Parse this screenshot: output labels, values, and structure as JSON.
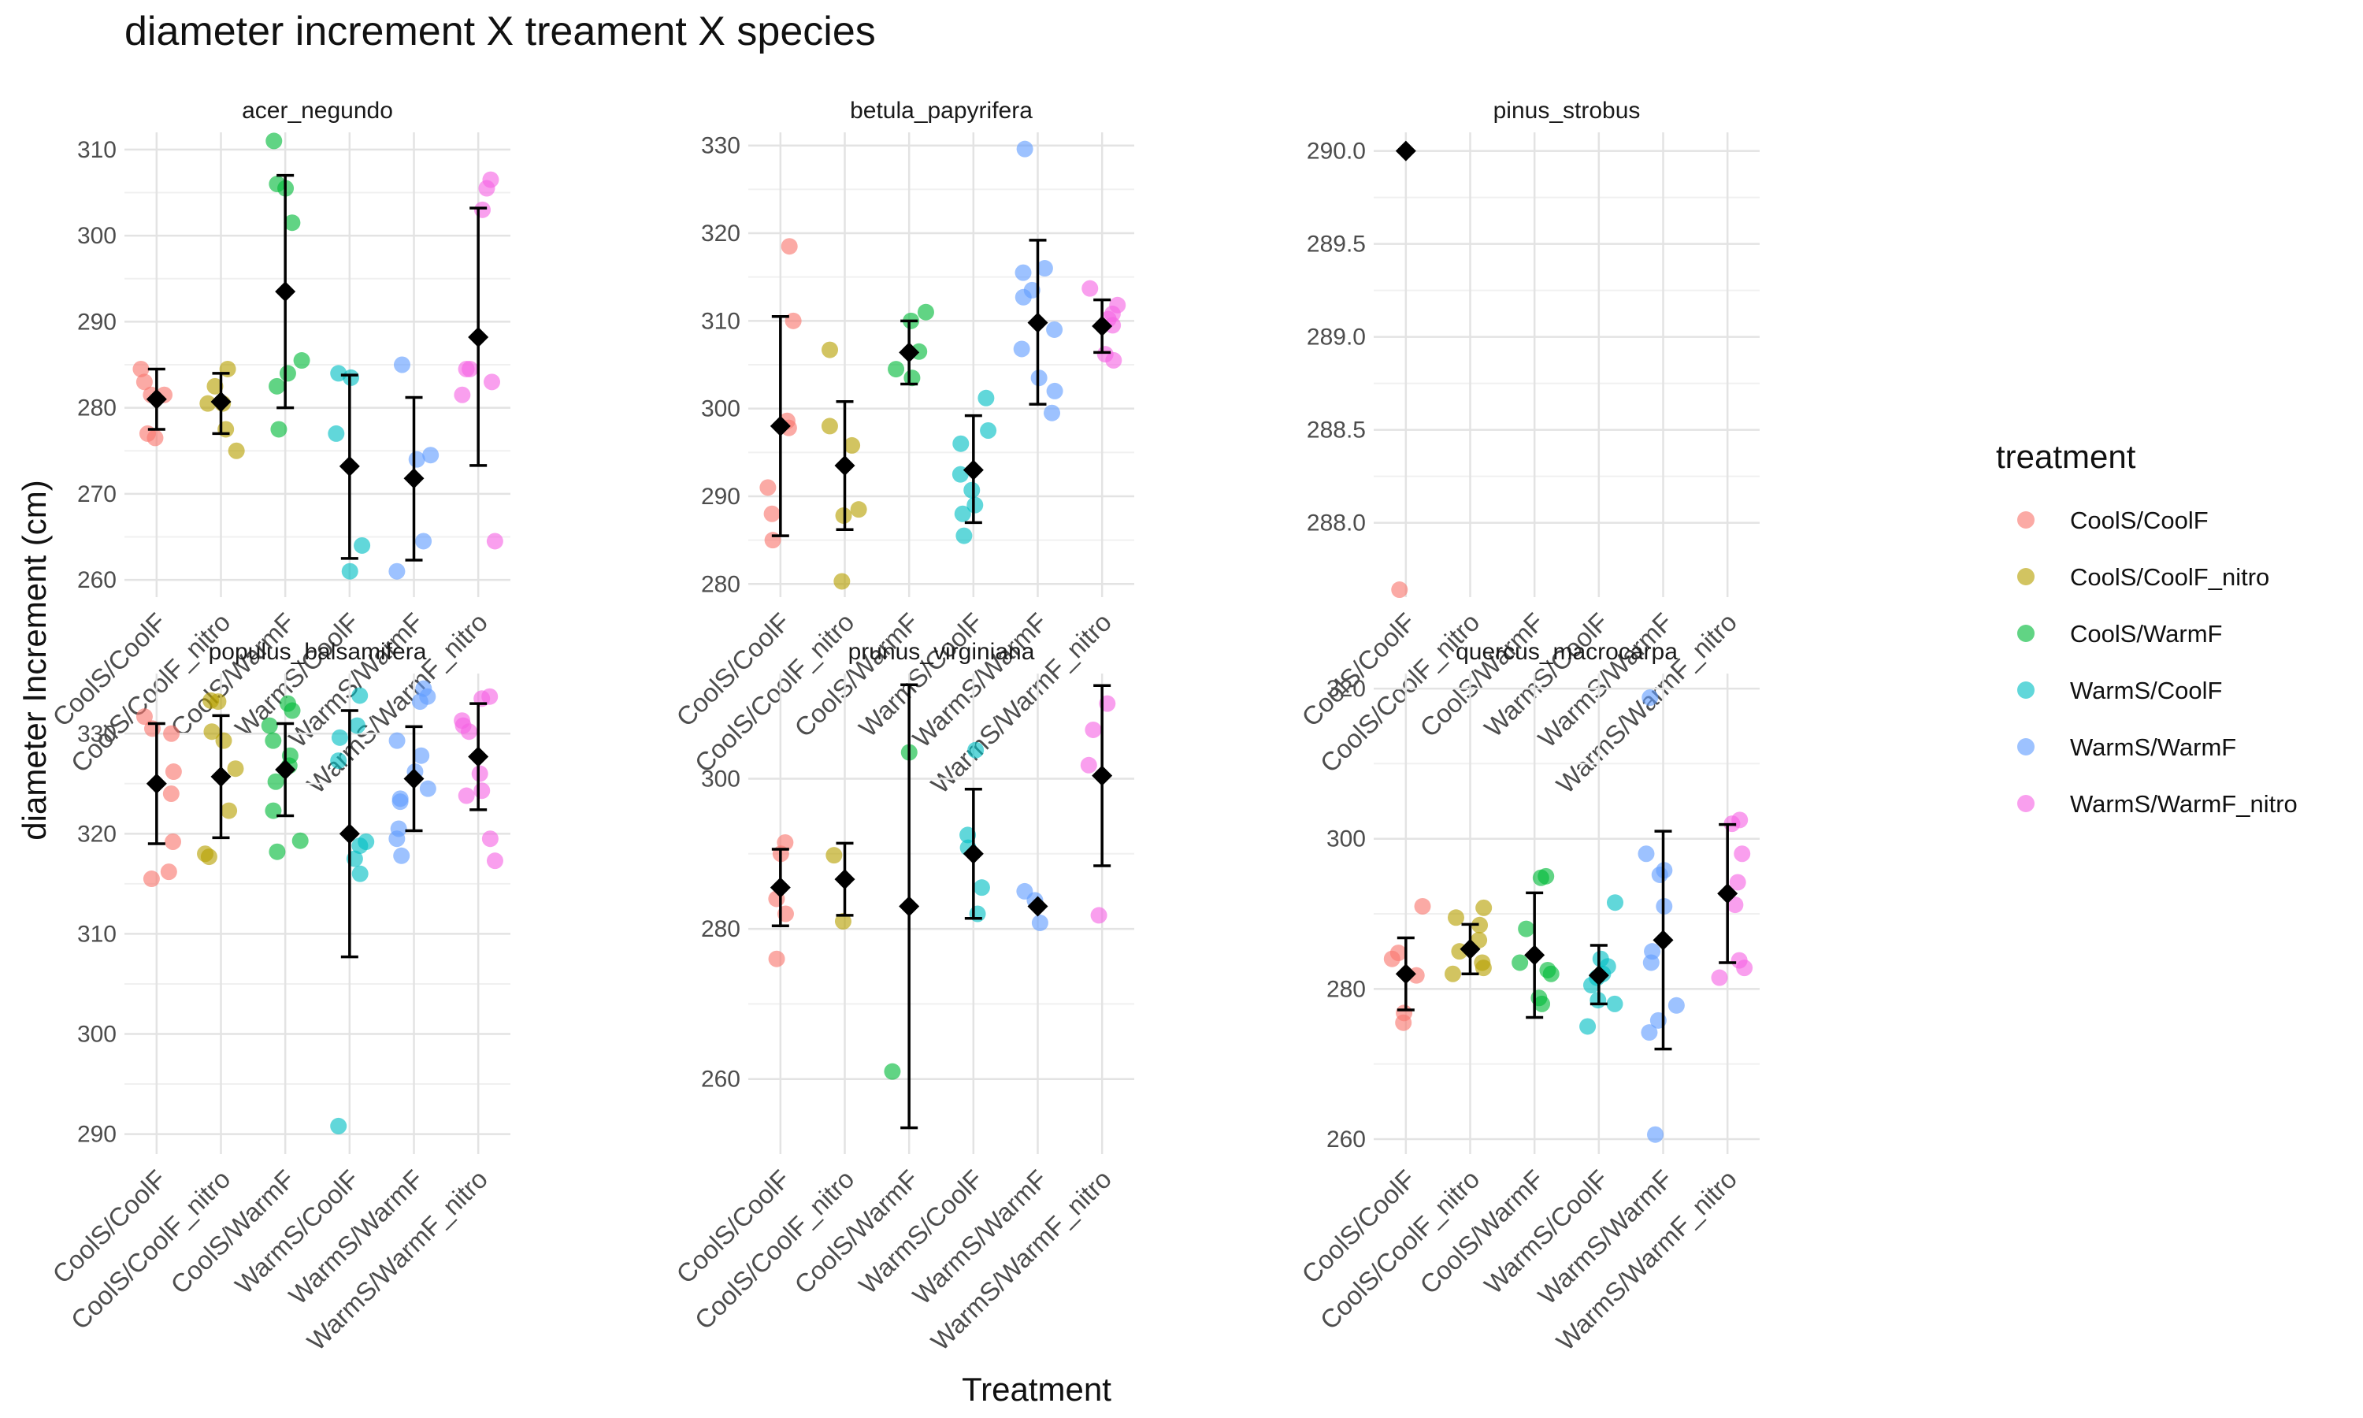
{
  "chart_data": {
    "type": "scatter",
    "title": "diameter increment X treament X species",
    "xlabel": "Treatment",
    "ylabel": "diameter Increment (cm)",
    "legend": {
      "title": "treatment",
      "placement": "right"
    },
    "grid": true,
    "categories": [
      "CoolS/CoolF",
      "CoolS/CoolF_nitro",
      "CoolS/WarmF",
      "WarmS/CoolF",
      "WarmS/WarmF",
      "WarmS/WarmF_nitro"
    ],
    "colors": {
      "CoolS/CoolF": "#F8766D",
      "CoolS/CoolF_nitro": "#B79F00",
      "CoolS/WarmF": "#00BA38",
      "WarmS/CoolF": "#00BFC4",
      "WarmS/WarmF": "#619CFF",
      "WarmS/WarmF_nitro": "#F564E3"
    },
    "panels": [
      {
        "name": "acer_negundo",
        "ylim": [
          258,
          312
        ],
        "yticks": [
          260,
          270,
          280,
          290,
          300,
          310
        ],
        "ytick_labels": [
          "260",
          "270",
          "280",
          "290",
          "300",
          "310"
        ],
        "points": [
          [
            277,
            276.5,
            281.5,
            283,
            284.5,
            281.5
          ],
          [
            275,
            280.5,
            280.5,
            282.5,
            284.5,
            277.5
          ],
          [
            277.5,
            282.5,
            285.5,
            284,
            301.5,
            305.5,
            306,
            311
          ],
          [
            261,
            264,
            277,
            284,
            283.5
          ],
          [
            261,
            264.5,
            274,
            274.5,
            285
          ],
          [
            264.5,
            281.5,
            283,
            284.5,
            284.5,
            303,
            305.5,
            306.5
          ]
        ],
        "summary": [
          {
            "mean": 281,
            "lower": 277.5,
            "upper": 284.5
          },
          {
            "mean": 280.7,
            "lower": 277,
            "upper": 284
          },
          {
            "mean": 293.5,
            "lower": 280,
            "upper": 307
          },
          {
            "mean": 273.2,
            "lower": 262.5,
            "upper": 283.8
          },
          {
            "mean": 271.8,
            "lower": 262.3,
            "upper": 281.2
          },
          {
            "mean": 288.2,
            "lower": 273.3,
            "upper": 303.2
          }
        ]
      },
      {
        "name": "betula_papyrifera",
        "ylim": [
          278.5,
          331.5
        ],
        "yticks": [
          280,
          290,
          300,
          310,
          320,
          330
        ],
        "ytick_labels": [
          "280",
          "290",
          "300",
          "310",
          "320",
          "330"
        ],
        "points": [
          [
            285,
            288,
            291,
            297.8,
            298.6,
            310,
            318.5
          ],
          [
            280.3,
            287.8,
            288.5,
            295.8,
            298,
            306.7
          ],
          [
            303.5,
            304.5,
            306.5,
            310,
            311
          ],
          [
            285.5,
            288,
            289,
            290.7,
            292.5,
            296,
            297.5,
            301.2
          ],
          [
            299.5,
            302,
            303.5,
            306.8,
            309,
            312.7,
            313.5,
            315.5,
            316,
            329.6
          ],
          [
            305.5,
            306.2,
            309.5,
            310.2,
            310.8,
            311.8,
            313.7
          ]
        ],
        "summary": [
          {
            "mean": 298,
            "lower": 285.5,
            "upper": 310.5
          },
          {
            "mean": 293.5,
            "lower": 286.2,
            "upper": 300.8
          },
          {
            "mean": 306.4,
            "lower": 302.8,
            "upper": 310
          },
          {
            "mean": 293,
            "lower": 287,
            "upper": 299.2
          },
          {
            "mean": 309.8,
            "lower": 300.5,
            "upper": 319.2
          },
          {
            "mean": 309.4,
            "lower": 306.4,
            "upper": 312.4
          }
        ]
      },
      {
        "name": "pinus_strobus",
        "ylim": [
          287.6,
          290.1
        ],
        "yticks": [
          288.0,
          288.5,
          289.0,
          289.5,
          290.0
        ],
        "ytick_labels": [
          "288.0",
          "288.5",
          "289.0",
          "289.5",
          "290.0"
        ],
        "points": [
          [
            287.64
          ],
          [],
          [],
          [],
          [],
          []
        ],
        "summary": [
          {
            "mean": 290.0,
            "lower": null,
            "upper": null
          },
          null,
          null,
          null,
          null,
          null
        ]
      },
      {
        "name": "populus_balsamifera",
        "ylim": [
          288,
          336
        ],
        "yticks": [
          290,
          300,
          310,
          320,
          330
        ],
        "ytick_labels": [
          "290",
          "300",
          "310",
          "320",
          "330"
        ],
        "points": [
          [
            315.5,
            316.2,
            319.2,
            324,
            326.2,
            330,
            330.5,
            331.7
          ],
          [
            317.7,
            318,
            322.3,
            326.5,
            329.3,
            330.2,
            333.2,
            333.3
          ],
          [
            318.2,
            319.3,
            322.3,
            325.2,
            326.8,
            327.8,
            329.3,
            330.8,
            332.3,
            333
          ],
          [
            290.8,
            316,
            317.5,
            318.8,
            319.2,
            327.3,
            329.6,
            330.8,
            333.8
          ],
          [
            317.8,
            319.5,
            320.5,
            323.2,
            323.5,
            324.5,
            326.2,
            327.8,
            329.3,
            333.2,
            333.7,
            334.5
          ],
          [
            317.3,
            319.5,
            323.8,
            324.3,
            326,
            330.2,
            330.8,
            331.3,
            333.5,
            333.7
          ]
        ],
        "summary": [
          {
            "mean": 325,
            "lower": 319,
            "upper": 331
          },
          {
            "mean": 325.7,
            "lower": 319.6,
            "upper": 331.8
          },
          {
            "mean": 326.4,
            "lower": 321.8,
            "upper": 331
          },
          {
            "mean": 320,
            "lower": 307.7,
            "upper": 332.3
          },
          {
            "mean": 325.5,
            "lower": 320.3,
            "upper": 330.7
          },
          {
            "mean": 327.7,
            "lower": 322.4,
            "upper": 333
          }
        ]
      },
      {
        "name": "prunus_virginiana",
        "ylim": [
          250,
          314
        ],
        "yticks": [
          260,
          280,
          300
        ],
        "ytick_labels": [
          "260",
          "280",
          "300"
        ],
        "points": [
          [
            276,
            282,
            284,
            290,
            291.5
          ],
          [
            281,
            289.8
          ],
          [
            261,
            303.5
          ],
          [
            282,
            285.5,
            290.8,
            292.5,
            303.8
          ],
          [
            280.8,
            283.8,
            285
          ],
          [
            281.8,
            301.8,
            306.5,
            310
          ]
        ],
        "summary": [
          {
            "mean": 285.5,
            "lower": 280.4,
            "upper": 290.6
          },
          {
            "mean": 286.6,
            "lower": 281.8,
            "upper": 291.4
          },
          {
            "mean": 283,
            "lower": 253.5,
            "upper": 312.5
          },
          {
            "mean": 290,
            "lower": 281.4,
            "upper": 298.6
          },
          {
            "mean": 283,
            "lower": null,
            "upper": null
          },
          {
            "mean": 300.4,
            "lower": 288.4,
            "upper": 312.4
          }
        ]
      },
      {
        "name": "quercus_macrocarpa",
        "ylim": [
          258,
          322
        ],
        "yticks": [
          260,
          280,
          300,
          320
        ],
        "ytick_labels": [
          "260",
          "280",
          "300",
          "320"
        ],
        "points": [
          [
            275.5,
            276.8,
            281.8,
            284,
            284.8,
            291
          ],
          [
            282,
            282.8,
            283.5,
            285,
            286.5,
            288.5,
            289.5,
            290.8
          ],
          [
            278,
            278.8,
            282,
            282.5,
            283.5,
            288,
            294.8,
            295
          ],
          [
            275,
            278,
            278.5,
            280.5,
            281.5,
            282,
            283,
            284,
            291.5
          ],
          [
            260.6,
            274.2,
            275.8,
            277.8,
            283.5,
            285,
            291,
            295.2,
            295.8,
            298,
            318.8
          ],
          [
            281.5,
            282.8,
            283.8,
            291.2,
            294.2,
            298,
            302,
            302.5
          ]
        ],
        "summary": [
          {
            "mean": 282,
            "lower": 277.2,
            "upper": 286.8
          },
          {
            "mean": 285.3,
            "lower": 282,
            "upper": 288.6
          },
          {
            "mean": 284.5,
            "lower": 276.2,
            "upper": 292.8
          },
          {
            "mean": 281.8,
            "lower": 278,
            "upper": 285.8
          },
          {
            "mean": 286.5,
            "lower": 272,
            "upper": 301
          },
          {
            "mean": 292.7,
            "lower": 283.5,
            "upper": 301.9
          }
        ]
      }
    ]
  }
}
